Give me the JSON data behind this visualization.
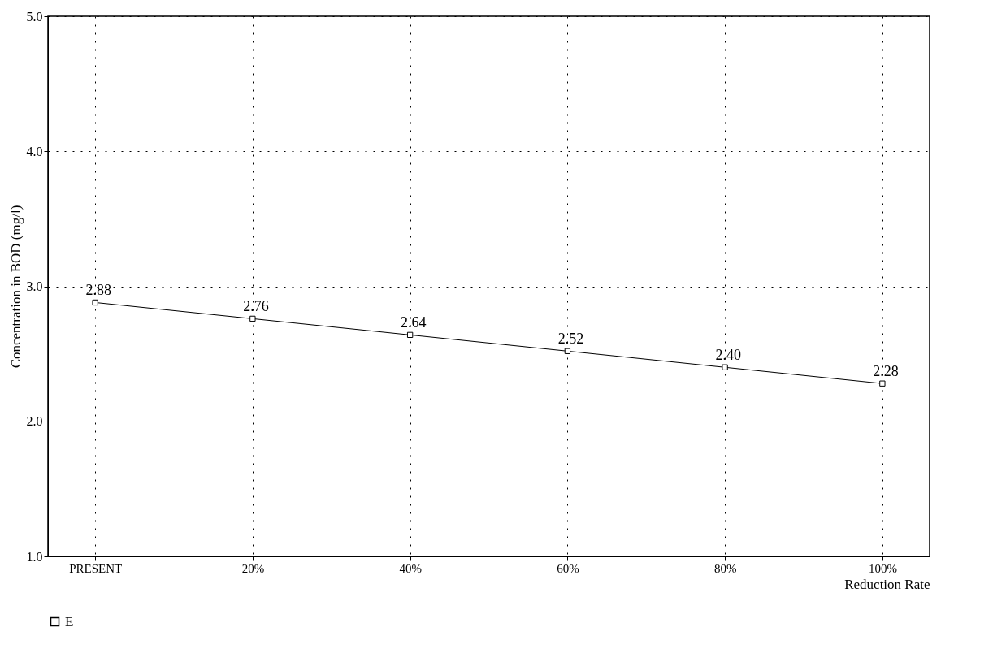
{
  "chart_data": {
    "type": "line",
    "xlabel": "Reduction Rate",
    "ylabel": "Concentration in BOD (mg/l)",
    "categories": [
      "PRESENT",
      "20%",
      "40%",
      "60%",
      "80%",
      "100%"
    ],
    "series": [
      {
        "name": "E",
        "color": "#000000",
        "values": [
          2.88,
          2.76,
          2.64,
          2.52,
          2.4,
          2.28
        ],
        "value_labels": [
          "2.88",
          "2.76",
          "2.64",
          "2.52",
          "2.40",
          "2.28"
        ]
      }
    ],
    "ylim": [
      1,
      5
    ],
    "yticks": [
      {
        "value": 1,
        "label": "1.0"
      },
      {
        "value": 2,
        "label": "2.0"
      },
      {
        "value": 3,
        "label": "3.0"
      },
      {
        "value": 4,
        "label": "4.0"
      },
      {
        "value": 5,
        "label": "5.0"
      }
    ],
    "grid": true,
    "legend": "bottom",
    "marker": "square",
    "line_style": "solid"
  }
}
